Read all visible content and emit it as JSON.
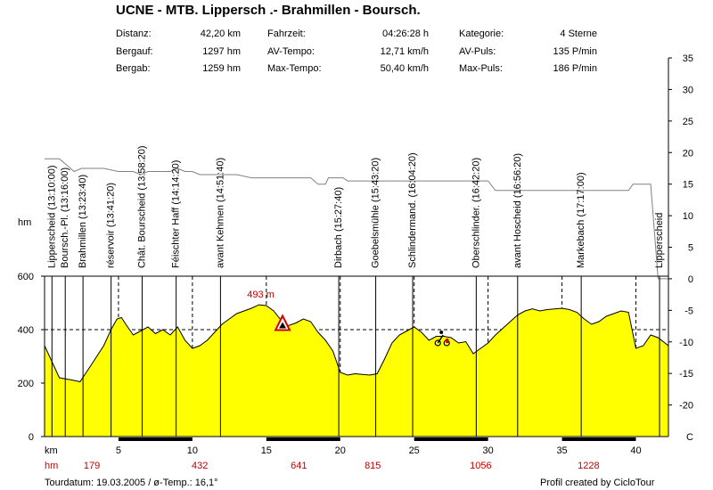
{
  "title": "UCNE - MTB. Lippersch .- Brahmillen - Boursch.",
  "stats": {
    "distanz": {
      "label": "Distanz:",
      "value": "42,20 km"
    },
    "bergauf": {
      "label": "Bergauf:",
      "value": "1297 hm"
    },
    "bergab": {
      "label": "Bergab:",
      "value": "1259 hm"
    },
    "fahrzeit": {
      "label": "Fahrzeit:",
      "value": "04:26:28 h"
    },
    "av_tempo": {
      "label": "AV-Tempo:",
      "value": "12,71 km/h"
    },
    "max_tempo": {
      "label": "Max-Tempo:",
      "value": "50,40 km/h"
    },
    "kategorie": {
      "label": "Kategorie:",
      "value": "4 Sterne"
    },
    "av_puls": {
      "label": "AV-Puls:",
      "value": "135 P/min"
    },
    "max_puls": {
      "label": "Max-Puls:",
      "value": "186 P/min"
    }
  },
  "footer": {
    "date": "Tourdatum: 19.03.2005  /  ø-Temp.: 16,1°",
    "credit": "Profil created by CicloTour"
  },
  "chart_data": {
    "type": "area",
    "x_axis": {
      "label": "km",
      "range": [
        0,
        42.2
      ],
      "ticks": [
        5,
        10,
        15,
        20,
        25,
        30,
        35,
        40
      ]
    },
    "y_axis_left": {
      "label": "hm",
      "range": [
        0,
        600
      ],
      "ticks": [
        0,
        200,
        400,
        600
      ]
    },
    "y_axis_right": {
      "label": "C",
      "range": [
        -25,
        35
      ],
      "ticks": [
        35,
        30,
        25,
        20,
        15,
        10,
        5,
        0,
        -5,
        -10,
        -15,
        -20
      ]
    },
    "hm_row": {
      "label": "hm",
      "entries": [
        {
          "km": 3.2,
          "text": "179"
        },
        {
          "km": 10.5,
          "text": "432"
        },
        {
          "km": 17.2,
          "text": "641"
        },
        {
          "km": 22.2,
          "text": "815"
        },
        {
          "km": 29.5,
          "text": "1056"
        },
        {
          "km": 36.8,
          "text": "1228"
        }
      ]
    },
    "peak_annotation": {
      "km": 14.5,
      "alt": 493,
      "text": "493 m"
    },
    "elevation_series": {
      "name": "Höhe",
      "x": [
        0,
        0.5,
        1,
        2,
        2.4,
        3,
        4,
        4.5,
        4.9,
        5.2,
        5.5,
        6,
        6.5,
        7,
        7.5,
        8,
        8.5,
        9,
        9.5,
        10,
        10.5,
        11,
        11.5,
        12,
        12.5,
        13,
        14,
        14.5,
        15,
        15.5,
        16,
        16.5,
        17,
        17.5,
        18,
        18.5,
        19,
        19.5,
        20,
        20.5,
        21,
        22,
        22.5,
        23,
        23.5,
        24,
        24.5,
        25,
        25.5,
        26,
        26.5,
        27,
        27.5,
        28,
        28.5,
        29,
        29.5,
        30,
        30.5,
        31,
        31.5,
        32,
        32.5,
        33,
        33.5,
        34,
        35,
        35.5,
        36,
        36.5,
        37,
        37.5,
        38,
        38.5,
        39,
        39.5,
        40,
        40.5,
        41,
        41.5,
        42.2
      ],
      "y": [
        340,
        280,
        220,
        210,
        205,
        255,
        340,
        400,
        440,
        445,
        420,
        380,
        395,
        410,
        385,
        400,
        380,
        410,
        360,
        330,
        340,
        360,
        390,
        420,
        440,
        460,
        480,
        493,
        490,
        470,
        435,
        415,
        425,
        440,
        430,
        390,
        360,
        320,
        240,
        230,
        235,
        230,
        235,
        290,
        350,
        380,
        395,
        410,
        390,
        360,
        375,
        375,
        370,
        350,
        355,
        310,
        330,
        350,
        380,
        405,
        430,
        455,
        470,
        478,
        470,
        475,
        480,
        475,
        465,
        440,
        420,
        430,
        450,
        460,
        470,
        465,
        330,
        340,
        380,
        370,
        340
      ]
    },
    "temperature_series": {
      "name": "Temperatur",
      "x": [
        0,
        1,
        1.5,
        2,
        2.5,
        4,
        5,
        6,
        6.5,
        7,
        7.5,
        8.5,
        9,
        9.5,
        10,
        10.5,
        11,
        12,
        13,
        14,
        15,
        16,
        17,
        18,
        18.5,
        19,
        19.2,
        20.2,
        20.5,
        24,
        30,
        30.5,
        38,
        39.5,
        39.8,
        40.2,
        41,
        41.5,
        42.2
      ],
      "y": [
        19,
        19,
        18,
        17,
        17.5,
        17.5,
        17,
        17,
        16.5,
        17,
        17,
        17,
        17.5,
        17,
        17,
        16.5,
        16.5,
        16.5,
        16.5,
        16,
        16,
        16,
        16,
        16,
        15,
        15,
        16,
        16,
        15.5,
        15.5,
        15.5,
        14,
        14,
        14,
        15,
        15,
        15,
        0,
        0
      ]
    },
    "waypoints": [
      {
        "km": 0.5,
        "name": "Lipperscheid (13:10:00)"
      },
      {
        "km": 1.4,
        "name": "Boursch.-Pl. (13:16:00)"
      },
      {
        "km": 2.6,
        "name": "Brahmillen (13:23:40)"
      },
      {
        "km": 4.5,
        "name": "réservoir (13:41:20)"
      },
      {
        "km": 6.6,
        "name": "Chât. Bourscheid (13:58:20)"
      },
      {
        "km": 8.9,
        "name": "Féischter Haff (14:14:20)"
      },
      {
        "km": 11.9,
        "name": "avant Kehmen (14:51:40)"
      },
      {
        "km": 19.9,
        "name": "Dirbach (15:27:40)"
      },
      {
        "km": 22.4,
        "name": "Goebelsmühle (15:43:20)"
      },
      {
        "km": 24.9,
        "name": "Schlindermand. (16:04:20)"
      },
      {
        "km": 29.2,
        "name": "Oberschlinder. (16:42:20)"
      },
      {
        "km": 32.0,
        "name": "avant Hoscheid (16:56:20)"
      },
      {
        "km": 36.3,
        "name": "Markebach (17:17:00)"
      },
      {
        "km": 41.6,
        "name": "Lipperscheid"
      }
    ],
    "grid": {
      "dashed_lines": [
        200,
        400
      ],
      "dashed_verticals": [
        5,
        10,
        15,
        20,
        25,
        30,
        35,
        40
      ]
    },
    "colors": {
      "fill": "#ffff00",
      "outline": "#000000",
      "temperature": "#808080",
      "hm_labels": "#c00000",
      "peak_label": "#c00000"
    }
  }
}
